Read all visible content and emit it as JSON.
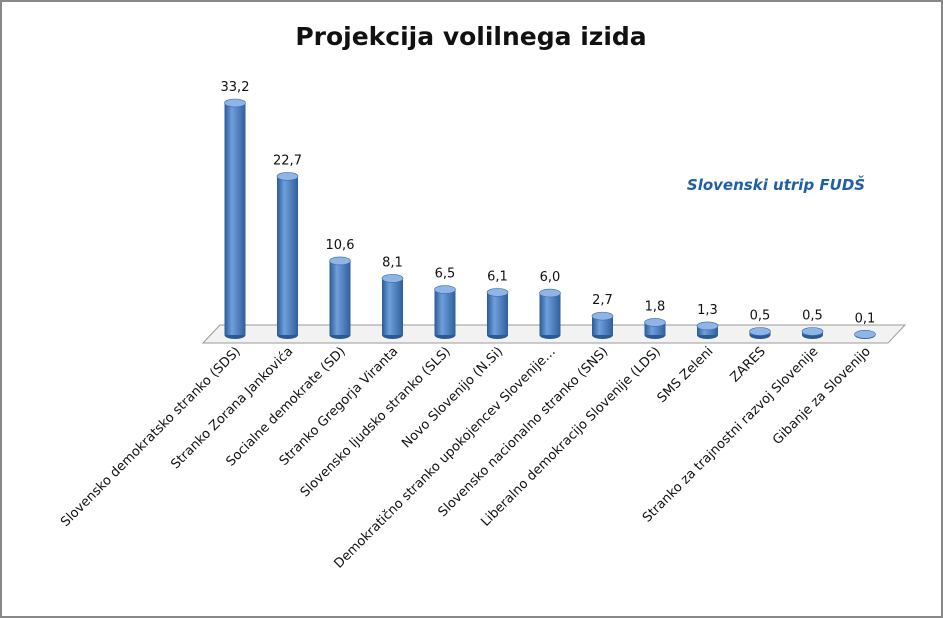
{
  "chart_data": {
    "type": "bar",
    "title": "Projekcija volilnega izida",
    "annotation": "Slovenski utrip FUDŠ",
    "categories": [
      "Slovensko demokratsko stranko (SDS)",
      "Stranko Zorana Jankovića",
      "Socialne demokrate (SD)",
      "Stranko Gregorja Viranta",
      "Slovensko ljudsko stranko (SLS)",
      "Novo Slovenijo (N.Si)",
      "Demokratično stranko upokojencev Slovenije…",
      "Slovensko nacionalno stranko (SNS)",
      "Liberalno demokracijo Slovenije (LDS)",
      "SMS Zeleni",
      "ZARES",
      "Stranko za trajnostni razvoj Slovenije",
      "Gibanje za Slovenijo"
    ],
    "values": [
      33.2,
      22.7,
      10.6,
      8.1,
      6.5,
      6.1,
      6.0,
      2.7,
      1.8,
      1.3,
      0.5,
      0.5,
      0.1
    ],
    "value_labels": [
      "33,2",
      "22,7",
      "10,6",
      "8,1",
      "6,5",
      "6,1",
      "6,0",
      "2,7",
      "1,8",
      "1,3",
      "0,5",
      "0,5",
      "0,1"
    ],
    "color": "#4a7ebb"
  }
}
